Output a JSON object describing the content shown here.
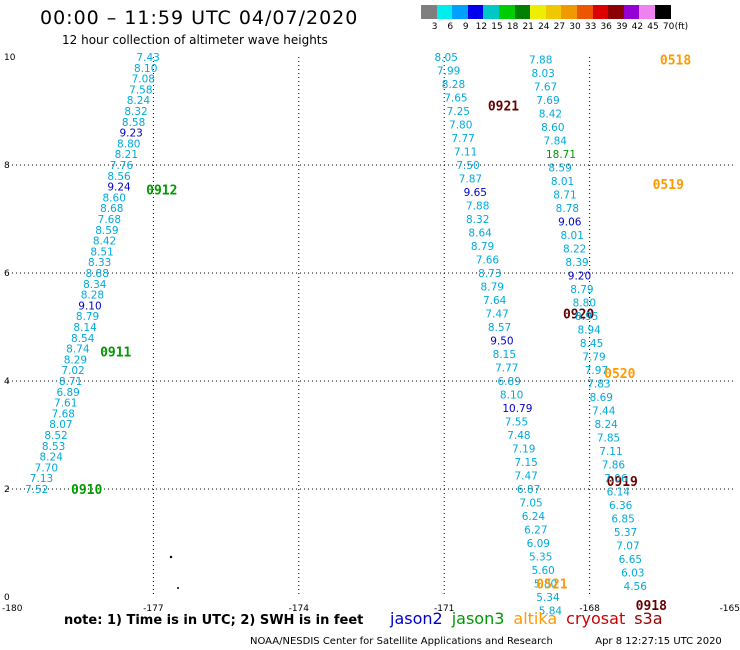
{
  "header": {
    "title": "00:00 – 11:59 UTC 04/07/2020",
    "subtitle": "12 hour collection of altimeter wave heights"
  },
  "colorbar": {
    "unit": "(ft)",
    "labels": [
      "3",
      "6",
      "9",
      "12",
      "15",
      "18",
      "21",
      "24",
      "27",
      "30",
      "33",
      "36",
      "39",
      "42",
      "45",
      "70"
    ],
    "colors": [
      "#7f7f7f",
      "#00eeee",
      "#00a0ff",
      "#0000ee",
      "#00c8c8",
      "#00cd00",
      "#007f00",
      "#eeee00",
      "#eec900",
      "#ee9a00",
      "#ee5500",
      "#dd0000",
      "#8b0000",
      "#9400d3",
      "#ee82ee",
      "#000000"
    ]
  },
  "map": {
    "y_ticks": [
      "0",
      "2",
      "4",
      "6",
      "8",
      "10"
    ],
    "x_ticks": [
      "-180",
      "-177",
      "-174",
      "-171",
      "-168",
      "-165"
    ]
  },
  "chart_data": {
    "type": "scatter",
    "xlim": [
      -180,
      -165
    ],
    "ylim": [
      0,
      10
    ],
    "grid": true,
    "swath_colors": {
      "jason2": "#0000cc",
      "jason3": "#009900",
      "altika": "#ff9900",
      "cryosat": "#cc0000",
      "s3a": "#990000"
    },
    "value_colors": {
      "lt9": "#00aadd",
      "9to12": "#0000cc",
      "12to21": "#009900"
    },
    "tracks": [
      {
        "pass_label": "0910",
        "pass_color": "#009900",
        "pass_at": [
          -178.7,
          2.0
        ],
        "points": [
          [
            -179.65,
            2.0,
            "7.52"
          ],
          [
            -179.55,
            2.2,
            "7.13"
          ],
          [
            -179.45,
            2.4,
            "7.70"
          ],
          [
            -179.35,
            2.6,
            "8.24"
          ],
          [
            -179.3,
            2.8,
            "8.53"
          ],
          [
            -179.25,
            3.0,
            "8.52"
          ],
          [
            -179.15,
            3.2,
            "8.07"
          ],
          [
            -179.1,
            3.4,
            "7.68"
          ],
          [
            -179.05,
            3.6,
            "7.61"
          ],
          [
            -179.0,
            3.8,
            "6.89"
          ],
          [
            -178.95,
            4.0,
            "8.71"
          ],
          [
            -178.9,
            4.2,
            "7.02"
          ],
          [
            -178.85,
            4.4,
            "8.29"
          ],
          [
            -178.8,
            4.6,
            "8.74"
          ],
          [
            -178.7,
            4.8,
            "8.54"
          ],
          [
            -178.65,
            5.0,
            "8.14"
          ],
          [
            -178.6,
            5.2,
            "8.79"
          ],
          [
            -178.55,
            5.4,
            "9.10"
          ],
          [
            -178.5,
            5.6,
            "8.28"
          ],
          [
            -178.45,
            5.8,
            "8.34"
          ],
          [
            -178.4,
            6.0,
            "8.88"
          ],
          [
            -178.35,
            6.2,
            "8.33"
          ],
          [
            -178.3,
            6.4,
            "8.51"
          ],
          [
            -178.25,
            6.6,
            "8.42"
          ],
          [
            -178.2,
            6.8,
            "8.59"
          ],
          [
            -178.15,
            7.0,
            "7.68"
          ],
          [
            -178.1,
            7.2,
            "8.68"
          ],
          [
            -178.05,
            7.4,
            "8.60"
          ],
          [
            -177.95,
            7.6,
            "9.24"
          ],
          [
            -177.95,
            7.8,
            "8.56"
          ],
          [
            -177.9,
            8.0,
            "7.76"
          ],
          [
            -177.8,
            8.2,
            "8.21"
          ],
          [
            -177.75,
            8.4,
            "8.80"
          ],
          [
            -177.7,
            8.6,
            "9.23"
          ],
          [
            -177.65,
            8.8,
            "8.58"
          ],
          [
            -177.6,
            9.0,
            "8.32"
          ],
          [
            -177.55,
            9.2,
            "8.24"
          ],
          [
            -177.5,
            9.4,
            "7.58"
          ],
          [
            -177.45,
            9.6,
            "7.08"
          ],
          [
            -177.4,
            9.8,
            "8.10"
          ],
          [
            -177.35,
            10.0,
            "7.43"
          ]
        ]
      },
      {
        "pass_label": "0911",
        "pass_color": "#009900",
        "pass_at": [
          -178.1,
          4.55
        ],
        "points": []
      },
      {
        "pass_label": "0912",
        "pass_color": "#009900",
        "pass_at": [
          -177.15,
          7.55
        ],
        "points": []
      },
      {
        "pass_label": "0921",
        "pass_color": "#660000",
        "pass_at": [
          -170.1,
          9.1
        ],
        "points": [
          [
            -171.2,
            10.0,
            "8.05"
          ],
          [
            -171.15,
            9.75,
            "7.99"
          ],
          [
            -171.05,
            9.5,
            "8.28"
          ],
          [
            -171.0,
            9.25,
            "7.65"
          ],
          [
            -170.95,
            9.0,
            "7.25"
          ],
          [
            -170.9,
            8.75,
            "7.80"
          ],
          [
            -170.85,
            8.5,
            "7.77"
          ],
          [
            -170.8,
            8.25,
            "7.11"
          ],
          [
            -170.75,
            8.0,
            "7.50"
          ],
          [
            -170.7,
            7.75,
            "7.87"
          ],
          [
            -170.6,
            7.5,
            "9.65"
          ],
          [
            -170.55,
            7.25,
            "7.88"
          ],
          [
            -170.55,
            7.0,
            "8.32"
          ],
          [
            -170.5,
            6.75,
            "8.64"
          ],
          [
            -170.45,
            6.5,
            "8.79"
          ],
          [
            -170.35,
            6.25,
            "7.66"
          ],
          [
            -170.3,
            6.0,
            "8.73"
          ],
          [
            -170.25,
            5.75,
            "8.79"
          ],
          [
            -170.2,
            5.5,
            "7.64"
          ],
          [
            -170.15,
            5.25,
            "7.47"
          ],
          [
            -170.1,
            5.0,
            "8.57"
          ],
          [
            -170.05,
            4.75,
            "9.50"
          ],
          [
            -170.0,
            4.5,
            "8.15"
          ],
          [
            -169.95,
            4.25,
            "7.77"
          ],
          [
            -169.9,
            4.0,
            "6.89"
          ],
          [
            -169.85,
            3.75,
            "8.10"
          ],
          [
            -169.8,
            3.5,
            "10.79"
          ],
          [
            -169.75,
            3.25,
            "7.55"
          ],
          [
            -169.7,
            3.0,
            "7.48"
          ],
          [
            -169.6,
            2.75,
            "7.19"
          ],
          [
            -169.55,
            2.5,
            "7.15"
          ],
          [
            -169.55,
            2.25,
            "7.47"
          ],
          [
            -169.5,
            2.0,
            "6.87"
          ],
          [
            -169.45,
            1.75,
            "7.05"
          ],
          [
            -169.4,
            1.5,
            "6.24"
          ],
          [
            -169.35,
            1.25,
            "6.27"
          ],
          [
            -169.3,
            1.0,
            "6.09"
          ],
          [
            -169.25,
            0.75,
            "5.35"
          ],
          [
            -169.2,
            0.5,
            "5.60"
          ],
          [
            -169.15,
            0.25,
            "5.80"
          ],
          [
            -169.1,
            0.0,
            "5.34"
          ],
          [
            -169.05,
            -0.25,
            "5.84"
          ]
        ]
      },
      {
        "pass_label": "0920",
        "pass_color": "#660000",
        "pass_at": [
          -168.55,
          5.25
        ],
        "points": []
      },
      {
        "pass_label": "0919",
        "pass_color": "#660000",
        "pass_at": [
          -167.65,
          2.15
        ],
        "points": []
      },
      {
        "pass_label": "0918",
        "pass_color": "#660000",
        "pass_at": [
          -167.05,
          -0.15
        ],
        "points": [
          [
            -167.3,
            0.2,
            "4.56"
          ],
          [
            -167.35,
            0.45,
            "6.03"
          ],
          [
            -167.4,
            0.7,
            "6.65"
          ],
          [
            -167.45,
            0.95,
            "7.07"
          ],
          [
            -167.5,
            1.2,
            "5.37"
          ],
          [
            -167.55,
            1.45,
            "6.85"
          ],
          [
            -167.6,
            1.7,
            "6.36"
          ],
          [
            -167.65,
            1.95,
            "6.14"
          ],
          [
            -167.7,
            2.2,
            "7.06"
          ],
          [
            -167.75,
            2.45,
            "7.86"
          ],
          [
            -167.8,
            2.7,
            "7.11"
          ],
          [
            -167.85,
            2.95,
            "7.85"
          ],
          [
            -167.9,
            3.2,
            "8.24"
          ],
          [
            -167.95,
            3.45,
            "7.44"
          ],
          [
            -168.0,
            3.7,
            "8.69"
          ],
          [
            -168.05,
            3.95,
            "7.83"
          ],
          [
            -168.1,
            4.2,
            "7.97"
          ],
          [
            -168.15,
            4.45,
            "7.79"
          ],
          [
            -168.2,
            4.7,
            "8.45"
          ],
          [
            -168.25,
            4.95,
            "8.94"
          ],
          [
            -168.3,
            5.2,
            "8.95"
          ],
          [
            -168.35,
            5.45,
            "8.80"
          ],
          [
            -168.4,
            5.7,
            "8.79"
          ],
          [
            -168.45,
            5.95,
            "9.20"
          ],
          [
            -168.5,
            6.2,
            "8.39"
          ],
          [
            -168.55,
            6.45,
            "8.22"
          ],
          [
            -168.6,
            6.7,
            "8.01"
          ],
          [
            -168.65,
            6.95,
            "9.06"
          ],
          [
            -168.7,
            7.2,
            "8.78"
          ],
          [
            -168.75,
            7.45,
            "8.71"
          ],
          [
            -168.8,
            7.7,
            "8.01"
          ],
          [
            -168.85,
            7.95,
            "8.59"
          ],
          [
            -168.9,
            8.2,
            "18.71"
          ],
          [
            -168.95,
            8.45,
            "7.84"
          ],
          [
            -169.0,
            8.7,
            "8.60"
          ],
          [
            -169.05,
            8.95,
            "8.42"
          ],
          [
            -169.1,
            9.2,
            "7.69"
          ],
          [
            -169.15,
            9.45,
            "7.67"
          ],
          [
            -169.2,
            9.7,
            "8.03"
          ],
          [
            -169.25,
            9.95,
            "7.88"
          ]
        ]
      },
      {
        "pass_label": "0518",
        "pass_color": "#ff9900",
        "pass_at": [
          -166.55,
          9.95
        ],
        "points": []
      },
      {
        "pass_label": "0519",
        "pass_color": "#ff9900",
        "pass_at": [
          -166.7,
          7.65
        ],
        "points": []
      },
      {
        "pass_label": "0520",
        "pass_color": "#ff9900",
        "pass_at": [
          -167.7,
          4.15
        ],
        "points": []
      },
      {
        "pass_label": "0521",
        "pass_color": "#ff9900",
        "pass_at": [
          -169.1,
          0.25
        ],
        "points": []
      }
    ]
  },
  "footer": {
    "note": "note:  1) Time is in UTC;  2) SWH is in feet",
    "legend": [
      {
        "label": "jason2",
        "color": "#0000cc"
      },
      {
        "label": "jason3",
        "color": "#009900"
      },
      {
        "label": "altika",
        "color": "#ff9900"
      },
      {
        "label": "cryosat",
        "color": "#cc0000"
      },
      {
        "label": "s3a",
        "color": "#990000"
      }
    ],
    "credit": "NOAA/NESDIS Center for Satellite Applications and Research",
    "timestamp": "Apr  8 12:27:15 UTC 2020"
  }
}
